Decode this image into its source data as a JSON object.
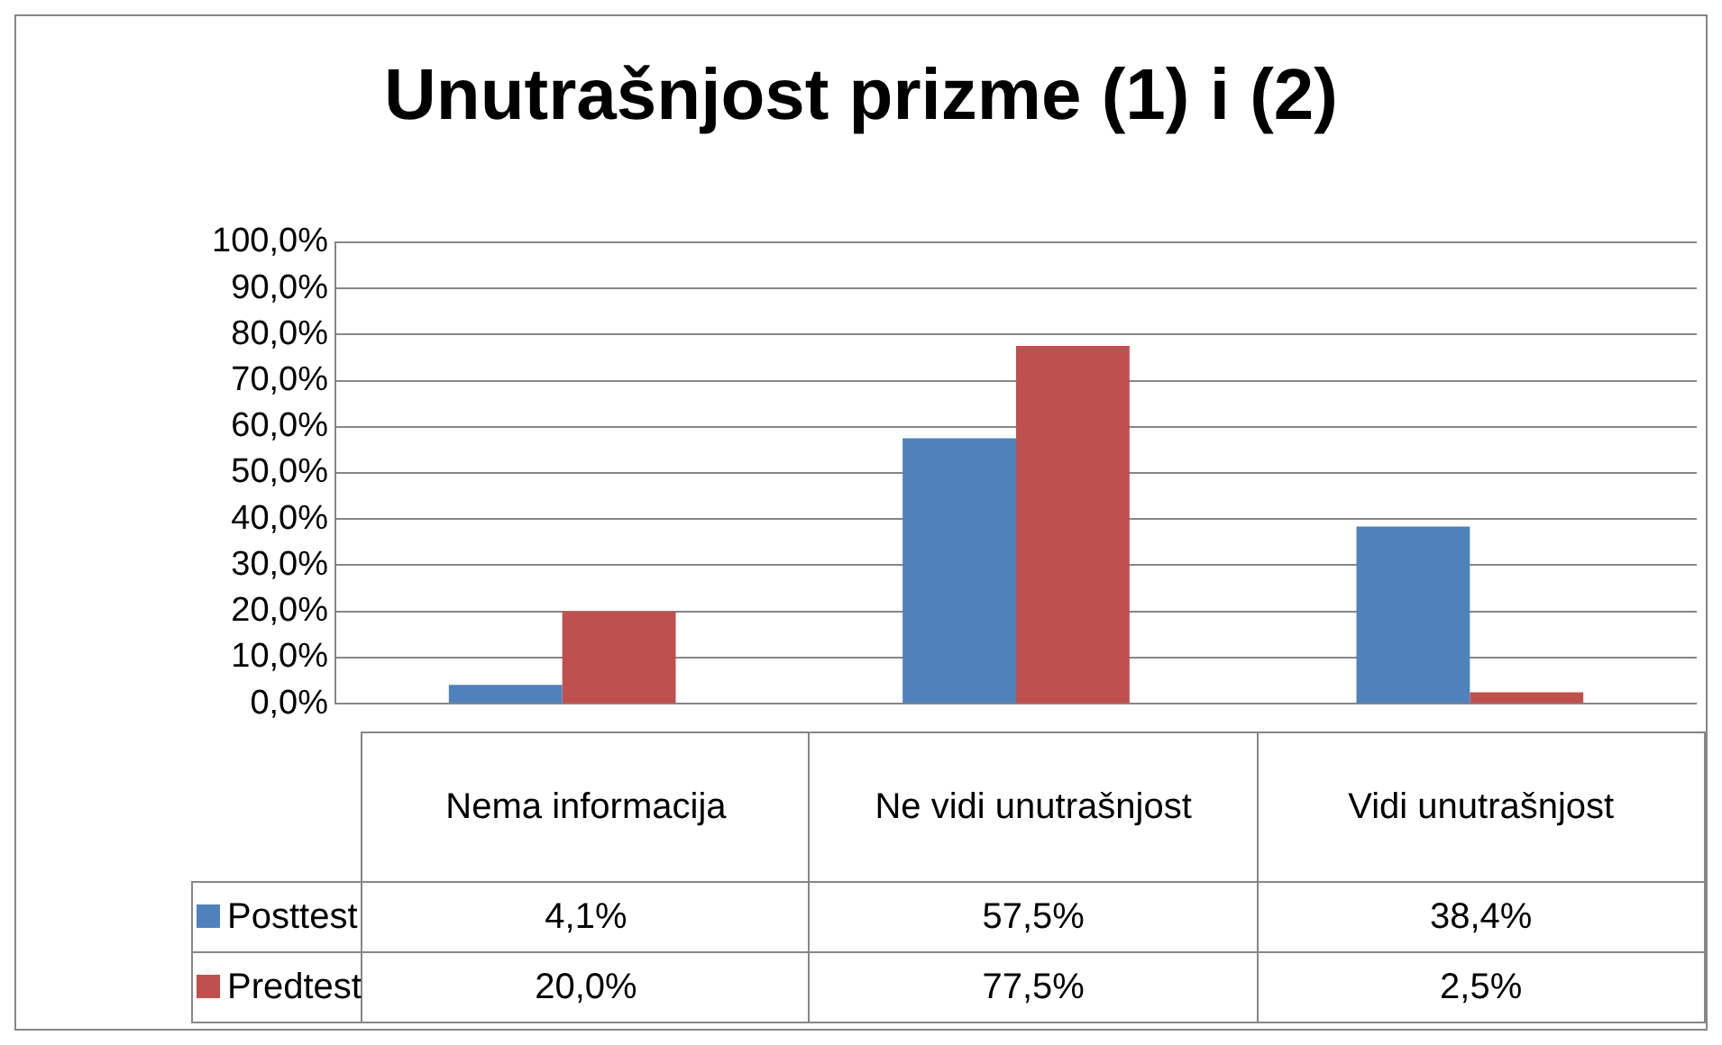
{
  "chart_data": {
    "type": "bar",
    "title": "Unutrašnjost prizme (1) i (2)",
    "categories": [
      "Nema informacija",
      "Ne vidi unutrašnjost",
      "Vidi unutrašnjost"
    ],
    "series": [
      {
        "name": "Posttest",
        "color": "#4f81bd",
        "values": [
          4.1,
          57.5,
          38.4
        ],
        "value_labels": [
          "4,1%",
          "57,5%",
          "38,4%"
        ]
      },
      {
        "name": "Predtest",
        "color": "#c0504d",
        "values": [
          20.0,
          77.5,
          2.5
        ],
        "value_labels": [
          "20,0%",
          "77,5%",
          "2,5%"
        ]
      }
    ],
    "ylim": [
      0,
      100
    ],
    "yticks": [
      {
        "value": 0,
        "label": "0,0%"
      },
      {
        "value": 10,
        "label": "10,0%"
      },
      {
        "value": 20,
        "label": "20,0%"
      },
      {
        "value": 30,
        "label": "30,0%"
      },
      {
        "value": 40,
        "label": "40,0%"
      },
      {
        "value": 50,
        "label": "50,0%"
      },
      {
        "value": 60,
        "label": "60,0%"
      },
      {
        "value": 70,
        "label": "70,0%"
      },
      {
        "value": 80,
        "label": "80,0%"
      },
      {
        "value": 90,
        "label": "90,0%"
      },
      {
        "value": 100,
        "label": "100,0%"
      }
    ],
    "grid": true,
    "legend": "bottom"
  }
}
